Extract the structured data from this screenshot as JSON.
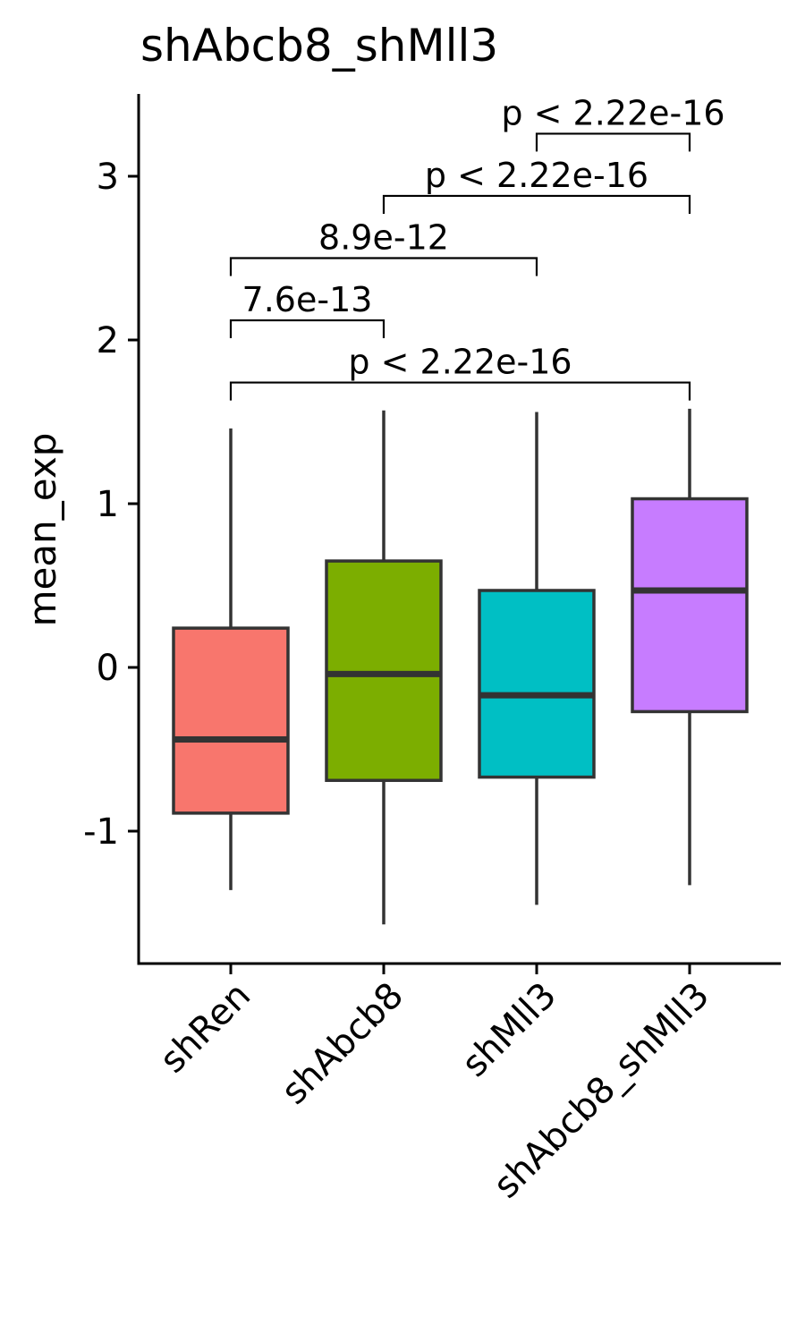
{
  "chart_data": {
    "type": "box",
    "title": "shAbcb8_shMll3",
    "xlabel": "",
    "ylabel": "mean_exp",
    "ylim": [
      -1.8,
      3.5
    ],
    "yticks": [
      -1,
      0,
      1,
      2,
      3
    ],
    "ytick_labels": [
      "-1",
      "0",
      "1",
      "2",
      "3"
    ],
    "categories": [
      "shRen",
      "shAbcb8",
      "shMll3",
      "shAbcb8_shMll3"
    ],
    "colors": [
      "#F8766D",
      "#7CAE00",
      "#00BFC4",
      "#C77CFF"
    ],
    "boxes": [
      {
        "group": "shRen",
        "min": -1.36,
        "q1": -0.89,
        "median": -0.44,
        "q3": 0.24,
        "max": 1.46
      },
      {
        "group": "shAbcb8",
        "min": -1.57,
        "q1": -0.69,
        "median": -0.04,
        "q3": 0.65,
        "max": 1.57
      },
      {
        "group": "shMll3",
        "min": -1.45,
        "q1": -0.67,
        "median": -0.17,
        "q3": 0.47,
        "max": 1.56
      },
      {
        "group": "shAbcb8_shMll3",
        "min": -1.33,
        "q1": -0.27,
        "median": 0.47,
        "q3": 1.03,
        "max": 1.58
      }
    ],
    "comparisons": [
      {
        "from": "shRen",
        "to": "shAbcb8_shMll3",
        "y": 1.74,
        "label": "p < 2.22e-16"
      },
      {
        "from": "shRen",
        "to": "shAbcb8",
        "y": 2.12,
        "label": "7.6e-13"
      },
      {
        "from": "shRen",
        "to": "shMll3",
        "y": 2.5,
        "label": "8.9e-12"
      },
      {
        "from": "shAbcb8",
        "to": "shAbcb8_shMll3",
        "y": 2.88,
        "label": "p < 2.22e-16"
      },
      {
        "from": "shMll3",
        "to": "shAbcb8_shMll3",
        "y": 3.26,
        "label": "p < 2.22e-16"
      }
    ],
    "legend": "none",
    "grid": false
  }
}
